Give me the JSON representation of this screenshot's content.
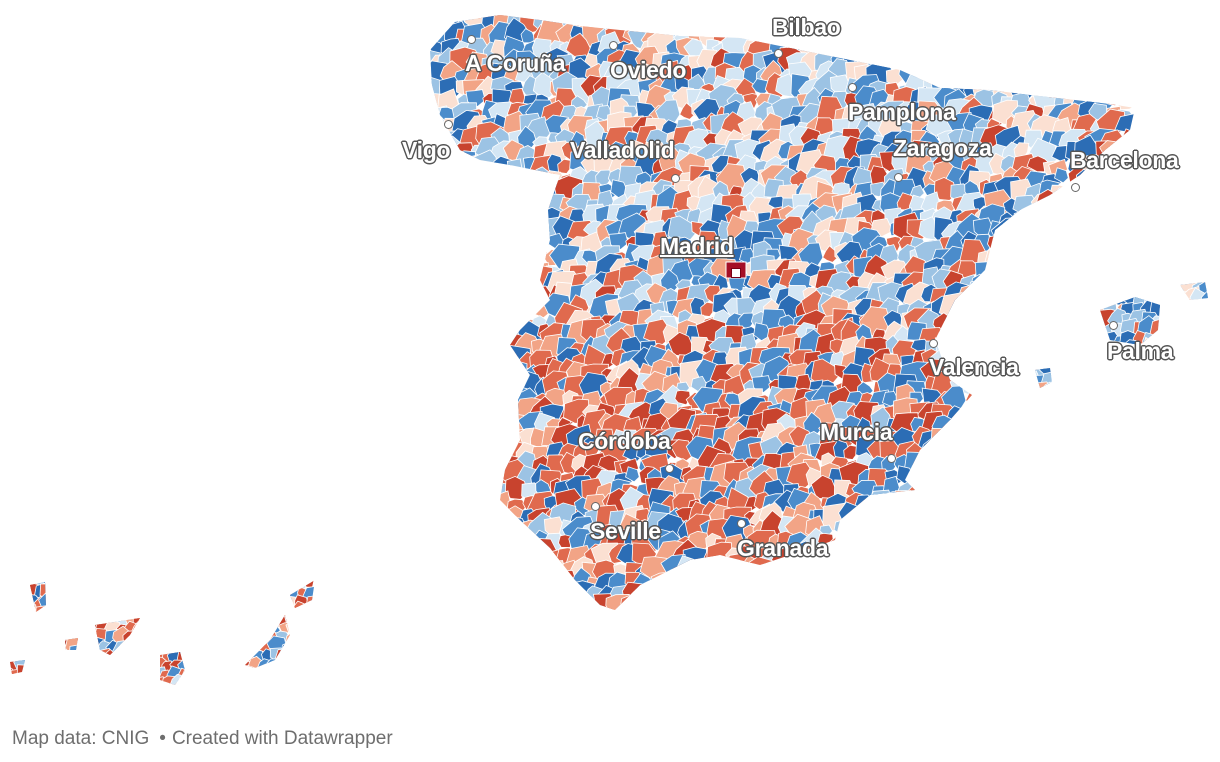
{
  "map": {
    "palette": {
      "dark_blue": "#2c6db5",
      "blue": "#4b8ccb",
      "light_blue": "#9cc3e4",
      "pale_blue": "#d4e6f4",
      "pale_red": "#fbe0d2",
      "light_red": "#f2a486",
      "red": "#e06a4e",
      "dark_red": "#c8432e",
      "capital_red": "#a50f26",
      "border": "#ffffff"
    },
    "cities": [
      {
        "name": "A Coruña",
        "kind": "city"
      },
      {
        "name": "Oviedo",
        "kind": "city"
      },
      {
        "name": "Bilbao",
        "kind": "city"
      },
      {
        "name": "Pamplona",
        "kind": "city"
      },
      {
        "name": "Vigo",
        "kind": "city"
      },
      {
        "name": "Valladolid",
        "kind": "city"
      },
      {
        "name": "Zaragoza",
        "kind": "city"
      },
      {
        "name": "Barcelona",
        "kind": "city"
      },
      {
        "name": "Madrid",
        "kind": "capital"
      },
      {
        "name": "Valencia",
        "kind": "city"
      },
      {
        "name": "Palma",
        "kind": "city"
      },
      {
        "name": "Córdoba",
        "kind": "city"
      },
      {
        "name": "Murcia",
        "kind": "city"
      },
      {
        "name": "Seville",
        "kind": "city"
      },
      {
        "name": "Granada",
        "kind": "city"
      }
    ]
  },
  "footer": {
    "source": "Map data: CNIG",
    "separator": "•",
    "credit": "Created with Datawrapper"
  }
}
